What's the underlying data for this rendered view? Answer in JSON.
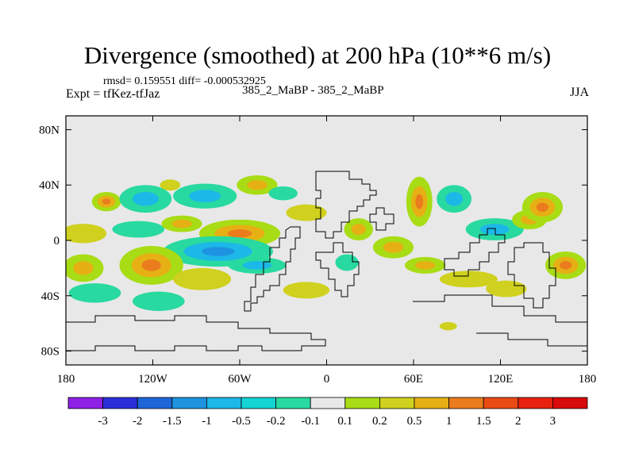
{
  "title": "Divergence (smoothed) at 200 hPa (10**6 m/s)",
  "stats": "rmsd= 0.159551 diff= -0.000532925",
  "experiment": "Expt = tfKez-tfJaz",
  "runs": "385_2_MaBP - 385_2_MaBP",
  "season": "JJA",
  "chart_data": {
    "type": "heatmap",
    "title": "Divergence (smoothed) at 200 hPa (10**6 m/s)",
    "x_ticks": [
      {
        "value": -180,
        "label": "180"
      },
      {
        "value": -120,
        "label": "120W"
      },
      {
        "value": -60,
        "label": "60W"
      },
      {
        "value": 0,
        "label": "0"
      },
      {
        "value": 60,
        "label": "60E"
      },
      {
        "value": 120,
        "label": "120E"
      },
      {
        "value": 180,
        "label": "180"
      }
    ],
    "y_ticks": [
      {
        "value": 80,
        "label": "80N"
      },
      {
        "value": 40,
        "label": "40N"
      },
      {
        "value": 0,
        "label": "0"
      },
      {
        "value": -40,
        "label": "40S"
      },
      {
        "value": -80,
        "label": "80S"
      }
    ],
    "xlim": [
      -180,
      180
    ],
    "ylim": [
      -90,
      90
    ],
    "colorbar": {
      "labels": [
        "-3",
        "-2",
        "-1.5",
        "-1",
        "-0.5",
        "-0.2",
        "-0.1",
        "0.1",
        "0.2",
        "0.5",
        "1",
        "1.5",
        "2",
        "3"
      ],
      "colors": [
        "#8f20e6",
        "#2a2ed9",
        "#1e66d8",
        "#1e93e0",
        "#1cb8e8",
        "#14d3d3",
        "#28d9a0",
        "#e8e8e8",
        "#a8dc14",
        "#cfd11e",
        "#e6b014",
        "#ea7c1e",
        "#ea4b14",
        "#e8220f",
        "#d90a0a"
      ]
    },
    "background_color": "#e8e8e8",
    "grid": false,
    "anomalies": [
      {
        "lon": -152,
        "lat": 28,
        "rx": 10,
        "ry": 7,
        "value": 1
      },
      {
        "lon": -125,
        "lat": 30,
        "rx": 18,
        "ry": 10,
        "value": -0.5
      },
      {
        "lon": -108,
        "lat": 40,
        "rx": 7,
        "ry": 4,
        "value": 0.2
      },
      {
        "lon": -84,
        "lat": 32,
        "rx": 22,
        "ry": 9,
        "value": -0.5
      },
      {
        "lon": -48,
        "lat": 40,
        "rx": 14,
        "ry": 7,
        "value": 0.5
      },
      {
        "lon": -30,
        "lat": 34,
        "rx": 10,
        "ry": 5,
        "value": -0.2
      },
      {
        "lon": -14,
        "lat": 20,
        "rx": 14,
        "ry": 6,
        "value": 0.2
      },
      {
        "lon": -168,
        "lat": 5,
        "rx": 16,
        "ry": 7,
        "value": 0.2
      },
      {
        "lon": -130,
        "lat": 8,
        "rx": 18,
        "ry": 6,
        "value": -0.2
      },
      {
        "lon": -100,
        "lat": 12,
        "rx": 14,
        "ry": 6,
        "value": 0.5
      },
      {
        "lon": -60,
        "lat": 5,
        "rx": 28,
        "ry": 10,
        "value": 1
      },
      {
        "lon": -75,
        "lat": -8,
        "rx": 38,
        "ry": 11,
        "value": -1
      },
      {
        "lon": -48,
        "lat": -18,
        "rx": 20,
        "ry": 6,
        "value": -0.5
      },
      {
        "lon": -168,
        "lat": -20,
        "rx": 14,
        "ry": 10,
        "value": 0.5
      },
      {
        "lon": -121,
        "lat": -18,
        "rx": 22,
        "ry": 14,
        "value": 1
      },
      {
        "lon": -86,
        "lat": -28,
        "rx": 20,
        "ry": 8,
        "value": 0.2
      },
      {
        "lon": -160,
        "lat": -38,
        "rx": 18,
        "ry": 7,
        "value": -0.2
      },
      {
        "lon": -116,
        "lat": -44,
        "rx": 18,
        "ry": 7,
        "value": -0.2
      },
      {
        "lon": -14,
        "lat": -36,
        "rx": 16,
        "ry": 6,
        "value": 0.2
      },
      {
        "lon": 22,
        "lat": 8,
        "rx": 10,
        "ry": 8,
        "value": 0.5
      },
      {
        "lon": 14,
        "lat": -16,
        "rx": 8,
        "ry": 6,
        "value": -0.2
      },
      {
        "lon": 46,
        "lat": -5,
        "rx": 14,
        "ry": 8,
        "value": 0.5
      },
      {
        "lon": 64,
        "lat": 28,
        "rx": 9,
        "ry": 18,
        "value": 1
      },
      {
        "lon": 88,
        "lat": 30,
        "rx": 12,
        "ry": 10,
        "value": -0.5
      },
      {
        "lon": 68,
        "lat": -18,
        "rx": 14,
        "ry": 6,
        "value": 0.5
      },
      {
        "lon": 98,
        "lat": -28,
        "rx": 20,
        "ry": 6,
        "value": 0.2
      },
      {
        "lon": 116,
        "lat": 8,
        "rx": 20,
        "ry": 8,
        "value": -0.5
      },
      {
        "lon": 140,
        "lat": 15,
        "rx": 12,
        "ry": 7,
        "value": 0.5
      },
      {
        "lon": 149,
        "lat": 24,
        "rx": 14,
        "ry": 11,
        "value": 1
      },
      {
        "lon": 165,
        "lat": -18,
        "rx": 14,
        "ry": 10,
        "value": 1
      },
      {
        "lon": 124,
        "lat": -35,
        "rx": 14,
        "ry": 6,
        "value": 0.2
      },
      {
        "lon": 84,
        "lat": -62,
        "rx": 6,
        "ry": 3,
        "value": 0.2
      }
    ]
  }
}
